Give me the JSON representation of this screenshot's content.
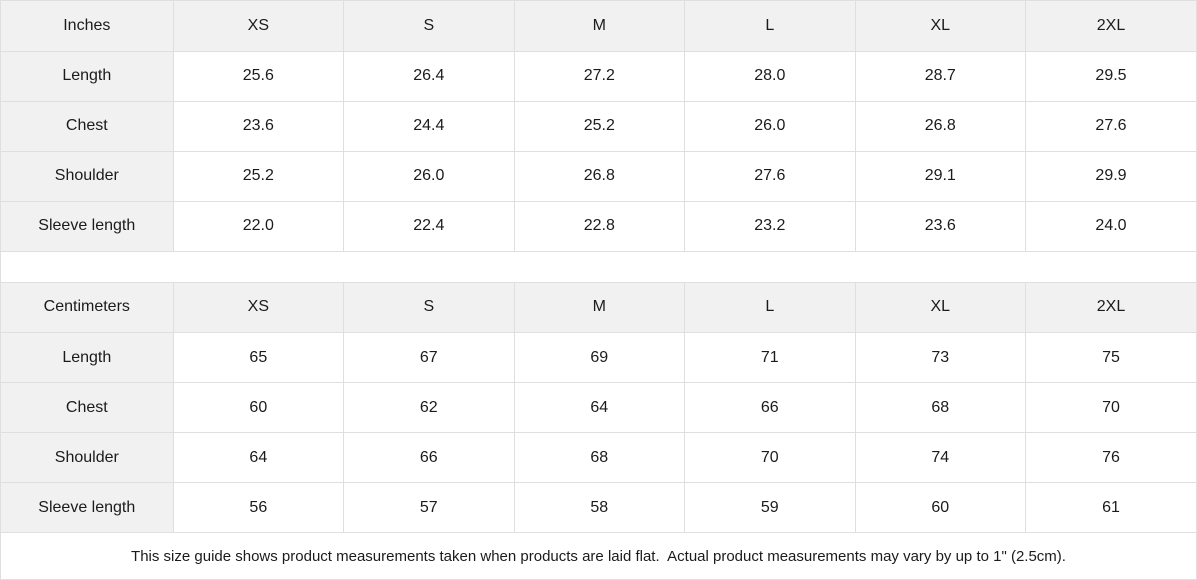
{
  "size_guide": {
    "tables": [
      {
        "unit_label": "Inches",
        "sizes": [
          "XS",
          "S",
          "M",
          "L",
          "XL",
          "2XL"
        ],
        "rows": [
          {
            "label": "Length",
            "values": [
              "25.6",
              "26.4",
              "27.2",
              "28.0",
              "28.7",
              "29.5"
            ]
          },
          {
            "label": "Chest",
            "values": [
              "23.6",
              "24.4",
              "25.2",
              "26.0",
              "26.8",
              "27.6"
            ]
          },
          {
            "label": "Shoulder",
            "values": [
              "25.2",
              "26.0",
              "26.8",
              "27.6",
              "29.1",
              "29.9"
            ]
          },
          {
            "label": "Sleeve length",
            "values": [
              "22.0",
              "22.4",
              "22.8",
              "23.2",
              "23.6",
              "24.0"
            ]
          }
        ]
      },
      {
        "unit_label": "Centimeters",
        "sizes": [
          "XS",
          "S",
          "M",
          "L",
          "XL",
          "2XL"
        ],
        "rows": [
          {
            "label": "Length",
            "values": [
              "65",
              "67",
              "69",
              "71",
              "73",
              "75"
            ]
          },
          {
            "label": "Chest",
            "values": [
              "60",
              "62",
              "64",
              "66",
              "68",
              "70"
            ]
          },
          {
            "label": "Shoulder",
            "values": [
              "64",
              "66",
              "68",
              "70",
              "74",
              "76"
            ]
          },
          {
            "label": "Sleeve length",
            "values": [
              "56",
              "57",
              "58",
              "59",
              "60",
              "61"
            ]
          }
        ]
      }
    ],
    "note": "This size guide shows product measurements taken when products are laid flat.  Actual product measurements may vary by up to 1\" (2.5cm).",
    "colors": {
      "header_bg": "#f1f1f1",
      "border": "#dfdfdf",
      "text": "#1b1b1b",
      "cell_bg": "#ffffff"
    }
  },
  "chart_data": [
    {
      "type": "table",
      "title": "Inches",
      "columns": [
        "Inches",
        "XS",
        "S",
        "M",
        "L",
        "XL",
        "2XL"
      ],
      "rows": [
        [
          "Length",
          25.6,
          26.4,
          27.2,
          28.0,
          28.7,
          29.5
        ],
        [
          "Chest",
          23.6,
          24.4,
          25.2,
          26.0,
          26.8,
          27.6
        ],
        [
          "Shoulder",
          25.2,
          26.0,
          26.8,
          27.6,
          29.1,
          29.9
        ],
        [
          "Sleeve length",
          22.0,
          22.4,
          22.8,
          23.2,
          23.6,
          24.0
        ]
      ]
    },
    {
      "type": "table",
      "title": "Centimeters",
      "columns": [
        "Centimeters",
        "XS",
        "S",
        "M",
        "L",
        "XL",
        "2XL"
      ],
      "rows": [
        [
          "Length",
          65,
          67,
          69,
          71,
          73,
          75
        ],
        [
          "Chest",
          60,
          62,
          64,
          66,
          68,
          70
        ],
        [
          "Shoulder",
          64,
          66,
          68,
          70,
          74,
          76
        ],
        [
          "Sleeve length",
          56,
          57,
          58,
          59,
          60,
          61
        ]
      ]
    }
  ]
}
